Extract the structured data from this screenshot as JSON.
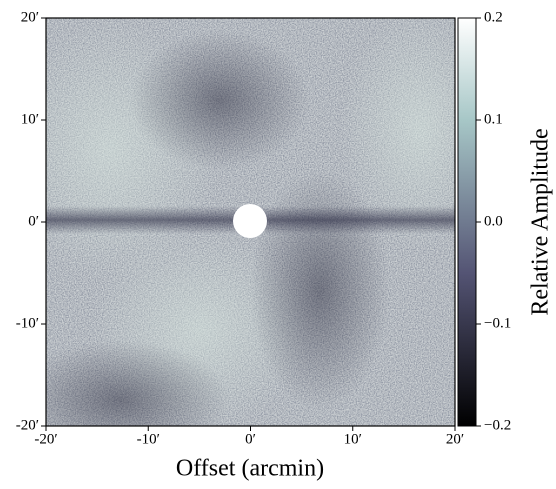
{
  "chart_data": {
    "type": "heatmap",
    "xlabel": "Offset (arcmin)",
    "colorbar_label": "Relative Amplitude",
    "xlim": [
      -20,
      20
    ],
    "ylim": [
      -20,
      20
    ],
    "xticks": [
      {
        "value": -20,
        "label": "-20′"
      },
      {
        "value": -10,
        "label": "-10′"
      },
      {
        "value": 0,
        "label": "0′"
      },
      {
        "value": 10,
        "label": "10′"
      },
      {
        "value": 20,
        "label": "20′"
      }
    ],
    "yticks": [
      {
        "value": -20,
        "label": "-20′"
      },
      {
        "value": -10,
        "label": "-10′"
      },
      {
        "value": 0,
        "label": "0′"
      },
      {
        "value": 10,
        "label": "10′"
      },
      {
        "value": 20,
        "label": "20′"
      }
    ],
    "clim": [
      -0.2,
      0.2
    ],
    "cticks": [
      {
        "value": -0.2,
        "label": "−0.2"
      },
      {
        "value": -0.1,
        "label": "−0.1"
      },
      {
        "value": 0,
        "label": "0.0"
      },
      0.1,
      0.2
    ]
  }
}
